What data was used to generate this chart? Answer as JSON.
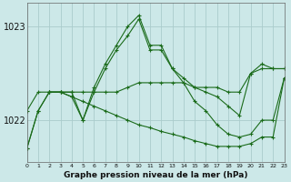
{
  "title": "Graphe pression niveau de la mer (hPa)",
  "bg_color": "#cce8e8",
  "grid_color": "#aacccc",
  "line_color": "#1a6b1a",
  "xlim": [
    0,
    23
  ],
  "ylim_bottom": 1021.55,
  "ylim_top": 1023.25,
  "yticks": [
    1022,
    1023
  ],
  "xticks": [
    0,
    1,
    2,
    3,
    4,
    5,
    6,
    7,
    8,
    9,
    10,
    11,
    12,
    13,
    14,
    15,
    16,
    17,
    18,
    19,
    20,
    21,
    22,
    23
  ],
  "series": [
    {
      "x": [
        0,
        1,
        2,
        3,
        4,
        5,
        6,
        7,
        8,
        9,
        10,
        11,
        12,
        13,
        14,
        15,
        16,
        17,
        18,
        19,
        20,
        21,
        22,
        23
      ],
      "y": [
        1021.7,
        1022.1,
        1022.3,
        1022.3,
        1022.3,
        1022.0,
        1022.3,
        1022.55,
        1022.75,
        1022.9,
        1023.08,
        1022.75,
        1022.75,
        1022.55,
        1022.45,
        1022.35,
        1022.3,
        1022.25,
        1022.15,
        1022.05,
        1022.5,
        1022.55,
        1022.55,
        1022.55
      ]
    },
    {
      "x": [
        0,
        1,
        2,
        3,
        4,
        5,
        6,
        7,
        8,
        9,
        10,
        11,
        12,
        13,
        14,
        15,
        16,
        17,
        18,
        19,
        20,
        21,
        22,
        23
      ],
      "y": [
        1021.7,
        1022.1,
        1022.3,
        1022.3,
        1022.25,
        1022.0,
        1022.35,
        1022.6,
        1022.8,
        1023.0,
        1023.12,
        1022.8,
        1022.8,
        1022.55,
        1022.4,
        1022.2,
        1022.1,
        1021.95,
        1021.85,
        1021.82,
        1021.85,
        1022.0,
        1022.0,
        1022.45
      ]
    },
    {
      "x": [
        0,
        1,
        2,
        3,
        4,
        5,
        6,
        7,
        8,
        9,
        10,
        11,
        12,
        13,
        14,
        15,
        16,
        17,
        18,
        19,
        20,
        21,
        22,
        23
      ],
      "y": [
        1022.1,
        1022.3,
        1022.3,
        1022.3,
        1022.3,
        1022.3,
        1022.3,
        1022.3,
        1022.3,
        1022.35,
        1022.4,
        1022.4,
        1022.4,
        1022.4,
        1022.4,
        1022.35,
        1022.35,
        1022.35,
        1022.3,
        1022.3,
        1022.5,
        1022.6,
        1022.55,
        1022.55
      ]
    },
    {
      "x": [
        2,
        3,
        4,
        5,
        6,
        7,
        8,
        9,
        10,
        11,
        12,
        13,
        14,
        15,
        16,
        17,
        18,
        19,
        20,
        21,
        22,
        23
      ],
      "y": [
        1022.3,
        1022.3,
        1022.25,
        1022.2,
        1022.15,
        1022.1,
        1022.05,
        1022.0,
        1021.95,
        1021.92,
        1021.88,
        1021.85,
        1021.82,
        1021.78,
        1021.75,
        1021.72,
        1021.72,
        1021.72,
        1021.75,
        1021.82,
        1021.82,
        1022.45
      ]
    }
  ]
}
